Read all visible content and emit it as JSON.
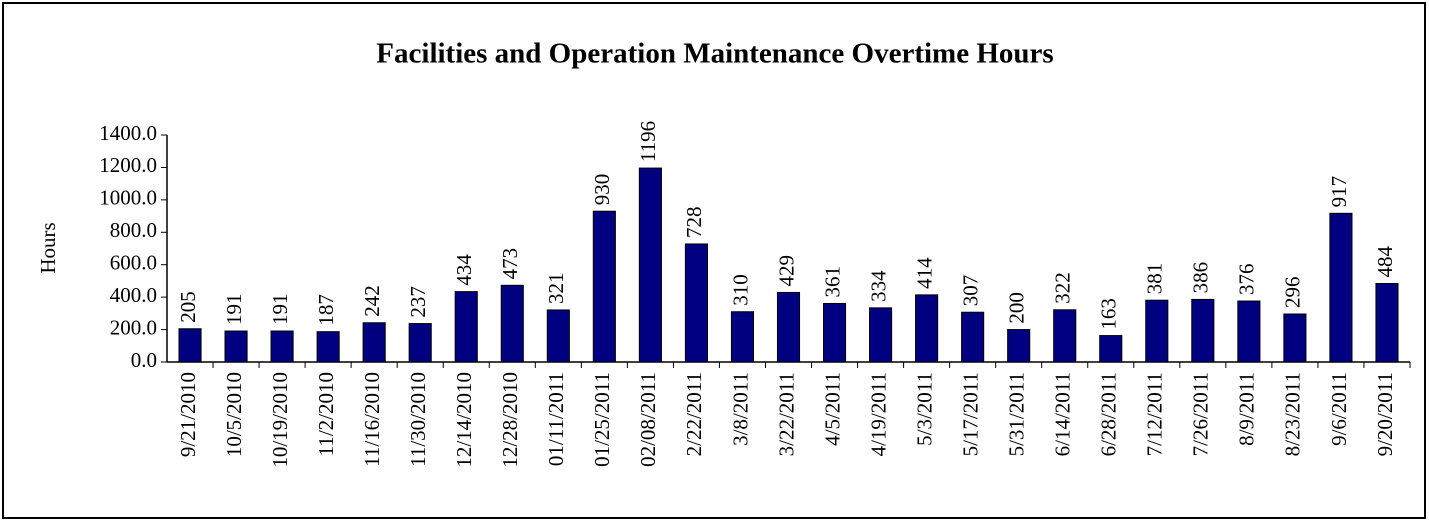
{
  "chart_data": {
    "type": "bar",
    "title": "Facilities and Operation Maintenance Overtime Hours",
    "ylabel": "Hours",
    "categories": [
      "9/21/2010",
      "10/5/2010",
      "10/19/2010",
      "11/2/2010",
      "11/16/2010",
      "11/30/2010",
      "12/14/2010",
      "12/28/2010",
      "01/11/2011",
      "01/25/2011",
      "02/08/2011",
      "2/22/2011",
      "3/8/2011",
      "3/22/2011",
      "4/5/2011",
      "4/19/2011",
      "5/3/2011",
      "5/17/2011",
      "5/31/2011",
      "6/14/2011",
      "6/28/2011",
      "7/12/2011",
      "7/26/2011",
      "8/9/2011",
      "8/23/2011",
      "9/6/2011",
      "9/20/2011"
    ],
    "values": [
      205,
      191,
      191,
      187,
      242,
      237,
      434,
      473,
      321,
      930,
      1196,
      728,
      310,
      429,
      361,
      334,
      414,
      307,
      200,
      322,
      163,
      381,
      386,
      376,
      296,
      917,
      484
    ],
    "color": "#000080",
    "ylim": [
      0,
      1400
    ],
    "yticks": [
      {
        "value": 0,
        "label": "0.0"
      },
      {
        "value": 200,
        "label": "200.0"
      },
      {
        "value": 400,
        "label": "400.0"
      },
      {
        "value": 600,
        "label": "600.0"
      },
      {
        "value": 800,
        "label": "800.0"
      },
      {
        "value": 1000,
        "label": "1000.0"
      },
      {
        "value": 1200,
        "label": "1200.0"
      },
      {
        "value": 1400,
        "label": "1400.0"
      }
    ],
    "grid": false
  }
}
